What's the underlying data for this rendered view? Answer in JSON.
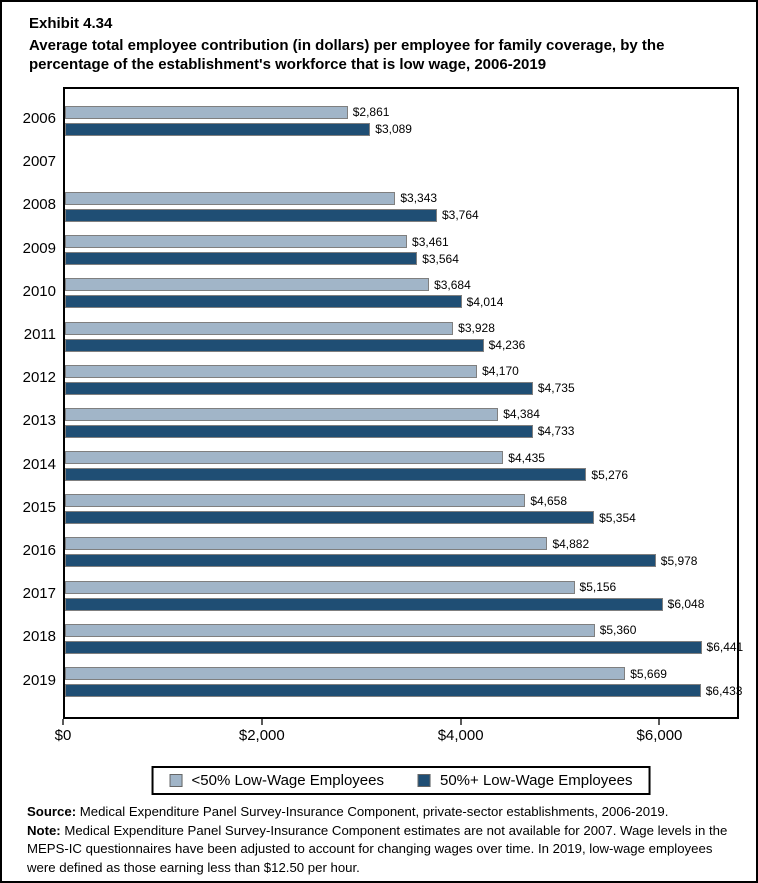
{
  "header": {
    "exhibit_label": "Exhibit 4.34",
    "title": "Average total employee contribution (in dollars) per employee for family coverage, by the percentage of the establishment's workforce that is low wage, 2006-2019"
  },
  "chart_data": {
    "type": "bar",
    "orientation": "horizontal",
    "title": "Average total employee contribution (in dollars) per employee for family coverage, by the percentage of the establishment's workforce that is low wage, 2006-2019",
    "categories": [
      "2006",
      "2007",
      "2008",
      "2009",
      "2010",
      "2011",
      "2012",
      "2013",
      "2014",
      "2015",
      "2016",
      "2017",
      "2018",
      "2019"
    ],
    "series": [
      {
        "name": "<50% Low-Wage Employees",
        "color": "#A1B5C8",
        "border_color": "#7F7F7F",
        "values": [
          2861,
          null,
          3343,
          3461,
          3684,
          3928,
          4170,
          4384,
          4435,
          4658,
          4882,
          5156,
          5360,
          5669
        ]
      },
      {
        "name": "50%+ Low-Wage Employees",
        "color": "#1F4E74",
        "border_color": "#7F7F7F",
        "values": [
          3089,
          null,
          3764,
          3564,
          4014,
          4236,
          4735,
          4733,
          5276,
          5354,
          5978,
          6048,
          6441,
          6433
        ]
      }
    ],
    "value_label_prefix": "$",
    "xlabel": "",
    "ylabel": "",
    "xlim": [
      0,
      6800
    ],
    "x_ticks": [
      {
        "value": 0,
        "label": "$0"
      },
      {
        "value": 2000,
        "label": "$2,000"
      },
      {
        "value": 4000,
        "label": "$4,000"
      },
      {
        "value": 6000,
        "label": "$6,000"
      }
    ],
    "grid": false,
    "legend_position": "bottom",
    "missing_data_note": "2007 has no bars (estimates not available)"
  },
  "footer": {
    "source_label": "Source:",
    "source_text": " Medical Expenditure Panel Survey-Insurance Component, private-sector establishments, 2006-2019.",
    "note_label": "Note:",
    "note_text": " Medical Expenditure Panel Survey-Insurance Component estimates are not available for 2007. Wage levels in the MEPS-IC questionnaires have been adjusted to account for changing wages over time. In 2019, low-wage employees were defined as those earning less than $12.50 per hour."
  }
}
